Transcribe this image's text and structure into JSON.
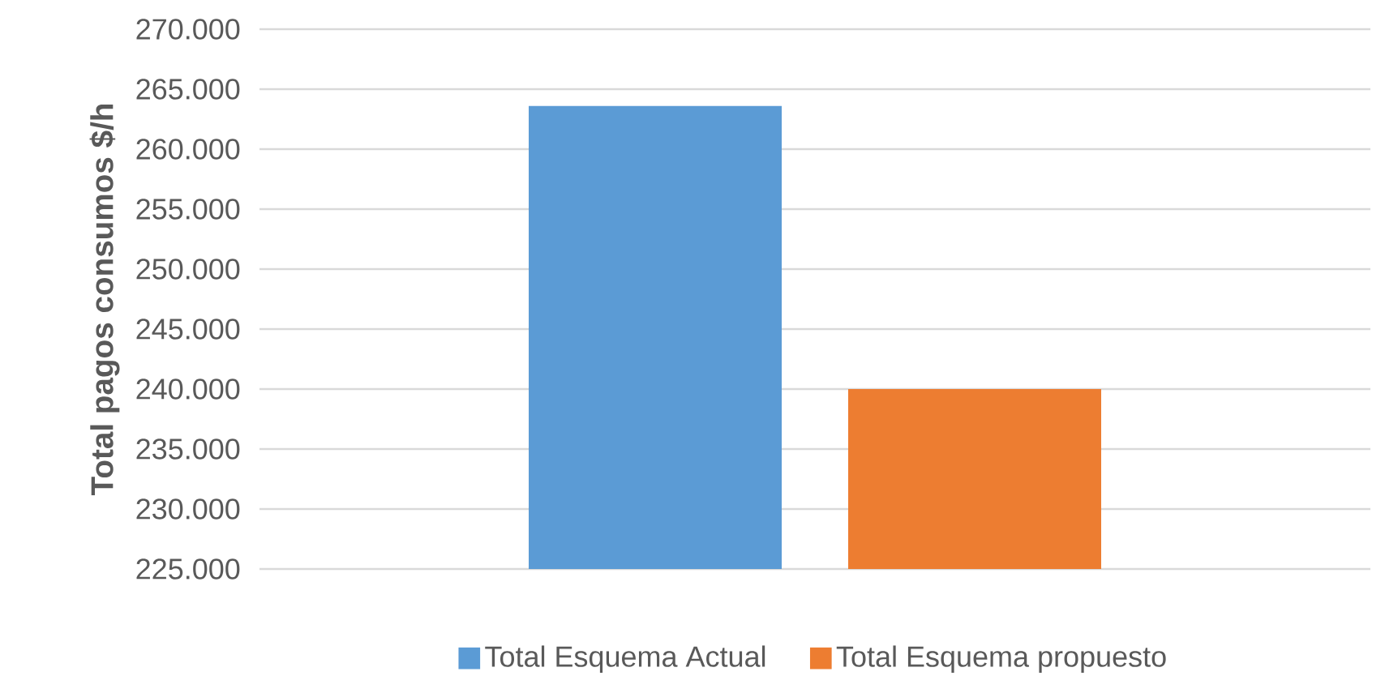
{
  "chart_data": {
    "type": "bar",
    "ylabel": "Total pagos consumos $/h",
    "categories": [
      null
    ],
    "series": [
      {
        "name": "Total Esquema Actual",
        "color": "#5b9bd5",
        "values": [
          263600
        ]
      },
      {
        "name": "Total Esquema propuesto",
        "color": "#ed7d31",
        "values": [
          240000
        ]
      }
    ],
    "ylim": [
      225000,
      270000
    ],
    "yticks": [
      {
        "value": 225000,
        "label": "225.000"
      },
      {
        "value": 230000,
        "label": "230.000"
      },
      {
        "value": 235000,
        "label": "235.000"
      },
      {
        "value": 240000,
        "label": "240.000"
      },
      {
        "value": 245000,
        "label": "245.000"
      },
      {
        "value": 250000,
        "label": "250.000"
      },
      {
        "value": 255000,
        "label": "255.000"
      },
      {
        "value": 260000,
        "label": "260.000"
      },
      {
        "value": 265000,
        "label": "265.000"
      },
      {
        "value": 270000,
        "label": "270.000"
      }
    ],
    "grid": "y",
    "legend": "bottom"
  }
}
